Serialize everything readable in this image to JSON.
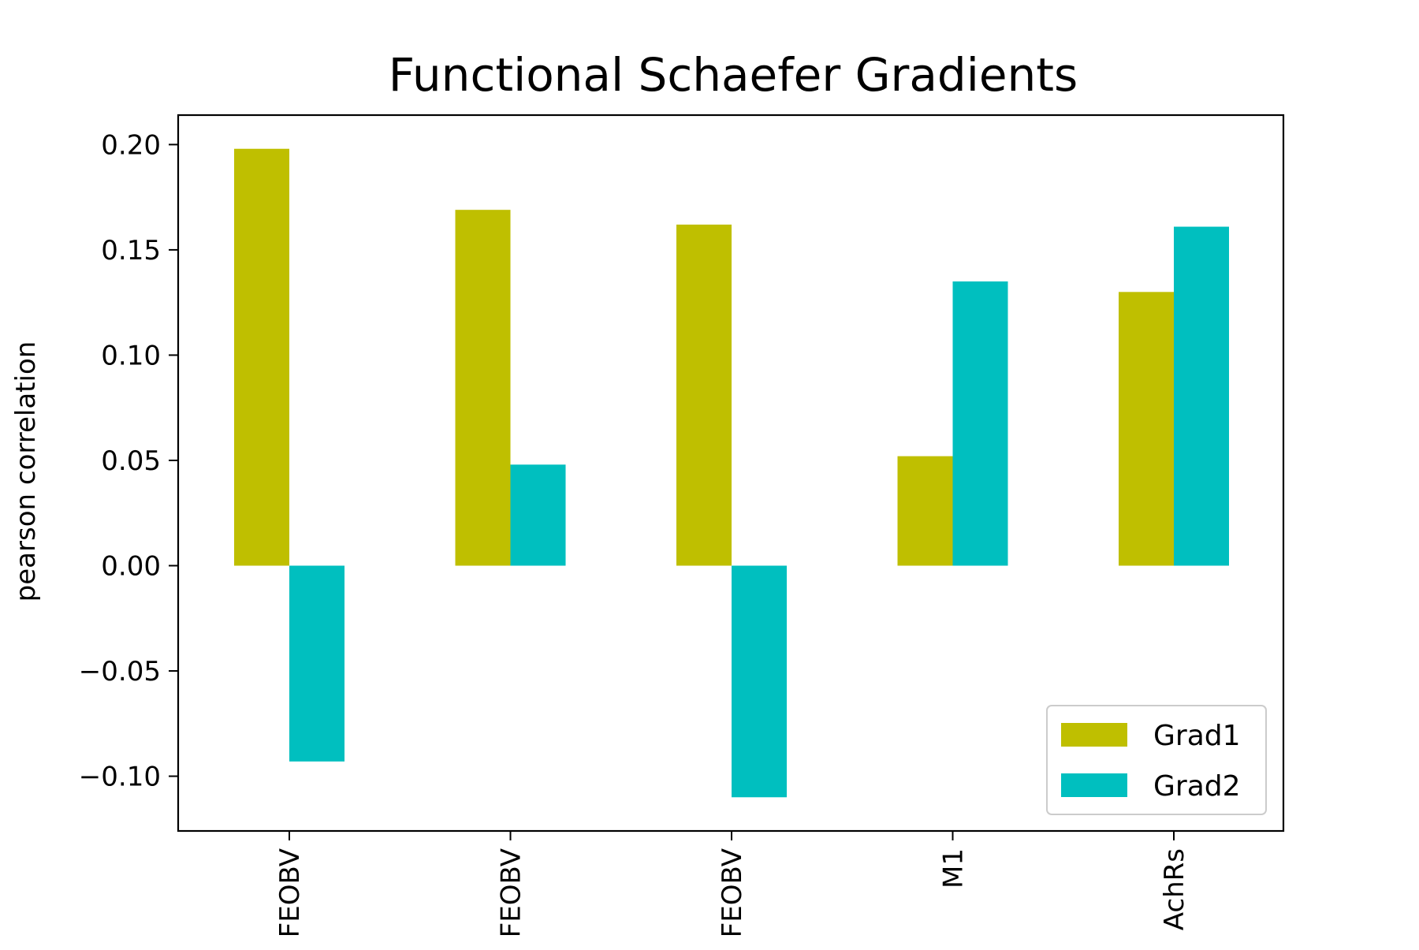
{
  "chart_data": {
    "type": "bar",
    "title": "Functional Schaefer Gradients",
    "xlabel": "",
    "ylabel": "pearson correlation",
    "categories": [
      "FEOBV",
      "FEOBV",
      "FEOBV",
      "M1",
      "AchRs"
    ],
    "series": [
      {
        "name": "Grad1",
        "color": "#bfbf00",
        "values": [
          0.198,
          0.169,
          0.162,
          0.052,
          0.13
        ]
      },
      {
        "name": "Grad2",
        "color": "#00bfbf",
        "values": [
          -0.093,
          0.048,
          -0.11,
          0.135,
          0.161
        ]
      }
    ],
    "ylim": [
      -0.126,
      0.214
    ],
    "yticks": [
      {
        "value": -0.1,
        "label": "−0.10"
      },
      {
        "value": -0.05,
        "label": "−0.05"
      },
      {
        "value": 0.0,
        "label": "0.00"
      },
      {
        "value": 0.05,
        "label": "0.05"
      },
      {
        "value": 0.1,
        "label": "0.10"
      },
      {
        "value": 0.15,
        "label": "0.15"
      },
      {
        "value": 0.2,
        "label": "0.20"
      }
    ],
    "grid": false,
    "legend_position": "lower-right"
  }
}
